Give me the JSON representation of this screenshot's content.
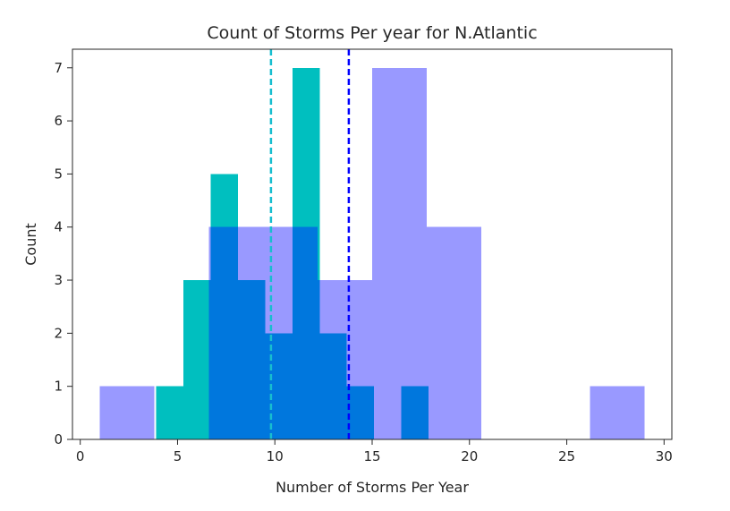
{
  "chart_data": {
    "type": "bar",
    "title": "Count of Storms Per year for N.Atlantic",
    "xlabel": "Number of Storms Per Year",
    "ylabel": "Count",
    "xlim": [
      -0.4,
      30.4
    ],
    "ylim": [
      0,
      7.35
    ],
    "xticks": [
      0,
      5,
      10,
      15,
      20,
      25,
      30
    ],
    "yticks": [
      0,
      1,
      2,
      3,
      4,
      5,
      6,
      7
    ],
    "grid": false,
    "colors": {
      "teal": "#00BFBF",
      "lavender": "#9999FF",
      "overlap": "#0077DD",
      "teal_mean_line": "#17BECF",
      "blue_mean_line": "#0000FF"
    },
    "series": [
      {
        "color": "#00BFBF",
        "bins": [
          {
            "x0": 3.9,
            "x1": 5.3,
            "count": 1
          },
          {
            "x0": 5.3,
            "x1": 6.7,
            "count": 3
          },
          {
            "x0": 6.7,
            "x1": 8.1,
            "count": 5
          },
          {
            "x0": 8.1,
            "x1": 9.5,
            "count": 3
          },
          {
            "x0": 9.5,
            "x1": 10.9,
            "count": 2
          },
          {
            "x0": 10.9,
            "x1": 12.3,
            "count": 7
          },
          {
            "x0": 12.3,
            "x1": 13.7,
            "count": 2
          },
          {
            "x0": 13.7,
            "x1": 15.1,
            "count": 1
          },
          {
            "x0": 15.1,
            "x1": 16.5,
            "count": 0
          },
          {
            "x0": 16.5,
            "x1": 17.9,
            "count": 1
          }
        ],
        "mean": 9.8
      },
      {
        "color": "#9999FF",
        "bins": [
          {
            "x0": 1.0,
            "x1": 3.8,
            "count": 1
          },
          {
            "x0": 3.8,
            "x1": 6.6,
            "count": 0
          },
          {
            "x0": 6.6,
            "x1": 9.4,
            "count": 4
          },
          {
            "x0": 9.4,
            "x1": 12.2,
            "count": 4
          },
          {
            "x0": 12.2,
            "x1": 15.0,
            "count": 3
          },
          {
            "x0": 15.0,
            "x1": 17.8,
            "count": 7
          },
          {
            "x0": 17.8,
            "x1": 20.6,
            "count": 4
          },
          {
            "x0": 20.6,
            "x1": 23.4,
            "count": 0
          },
          {
            "x0": 23.4,
            "x1": 26.2,
            "count": 0
          },
          {
            "x0": 26.2,
            "x1": 29.0,
            "count": 1
          }
        ],
        "mean": 13.8
      }
    ]
  }
}
